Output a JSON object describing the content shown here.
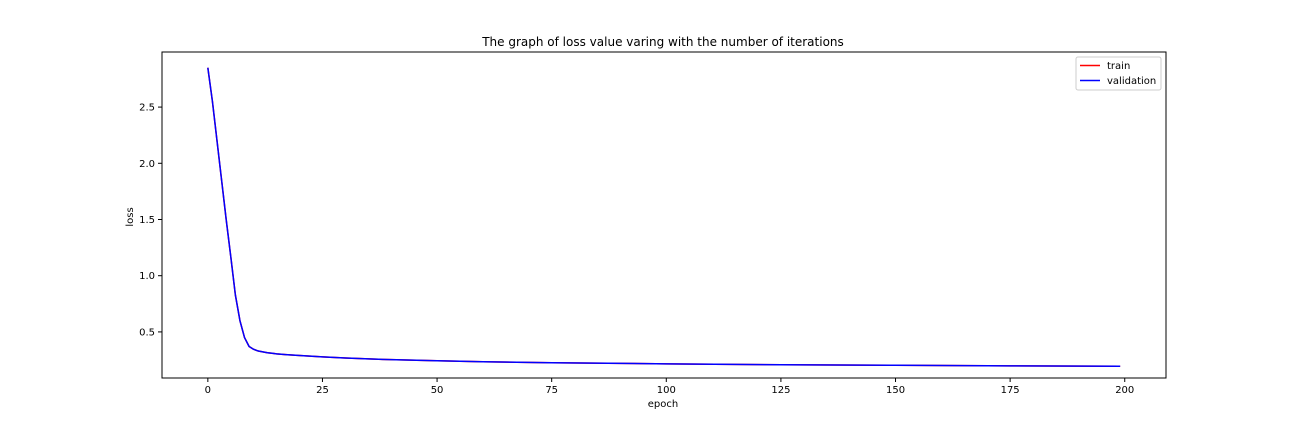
{
  "chart_data": {
    "type": "line",
    "title": "The graph of loss value varing with the number of iterations",
    "xlabel": "epoch",
    "ylabel": "loss",
    "xlim": [
      -10,
      209
    ],
    "ylim": [
      0.09,
      2.99
    ],
    "xticks": [
      0,
      25,
      50,
      75,
      100,
      125,
      150,
      175,
      200
    ],
    "yticks": [
      0.5,
      1.0,
      1.5,
      2.0,
      2.5
    ],
    "xtick_labels": [
      "0",
      "25",
      "50",
      "75",
      "100",
      "125",
      "150",
      "175",
      "200"
    ],
    "ytick_labels": [
      "0.5",
      "1.0",
      "1.5",
      "2.0",
      "2.5"
    ],
    "grid": false,
    "legend_position": "top-right",
    "series": [
      {
        "name": "train",
        "color": "#ff0000",
        "x": [
          0,
          1,
          2,
          3,
          4,
          5,
          6,
          7,
          8,
          9,
          10,
          11,
          12,
          13,
          14,
          15,
          17,
          20,
          25,
          30,
          35,
          40,
          50,
          60,
          75,
          100,
          125,
          150,
          175,
          199
        ],
        "y": [
          2.85,
          2.55,
          2.2,
          1.85,
          1.5,
          1.17,
          0.83,
          0.6,
          0.45,
          0.37,
          0.345,
          0.33,
          0.322,
          0.315,
          0.31,
          0.305,
          0.298,
          0.29,
          0.278,
          0.268,
          0.26,
          0.253,
          0.243,
          0.235,
          0.226,
          0.216,
          0.208,
          0.203,
          0.198,
          0.195
        ]
      },
      {
        "name": "validation",
        "color": "#0000ff",
        "x": [
          0,
          1,
          2,
          3,
          4,
          5,
          6,
          7,
          8,
          9,
          10,
          11,
          12,
          13,
          14,
          15,
          17,
          20,
          25,
          30,
          35,
          40,
          50,
          60,
          75,
          100,
          125,
          150,
          175,
          199
        ],
        "y": [
          2.85,
          2.55,
          2.2,
          1.85,
          1.5,
          1.17,
          0.83,
          0.6,
          0.45,
          0.37,
          0.345,
          0.33,
          0.322,
          0.315,
          0.31,
          0.305,
          0.298,
          0.29,
          0.278,
          0.268,
          0.26,
          0.253,
          0.243,
          0.235,
          0.226,
          0.216,
          0.208,
          0.203,
          0.198,
          0.195
        ]
      }
    ]
  }
}
